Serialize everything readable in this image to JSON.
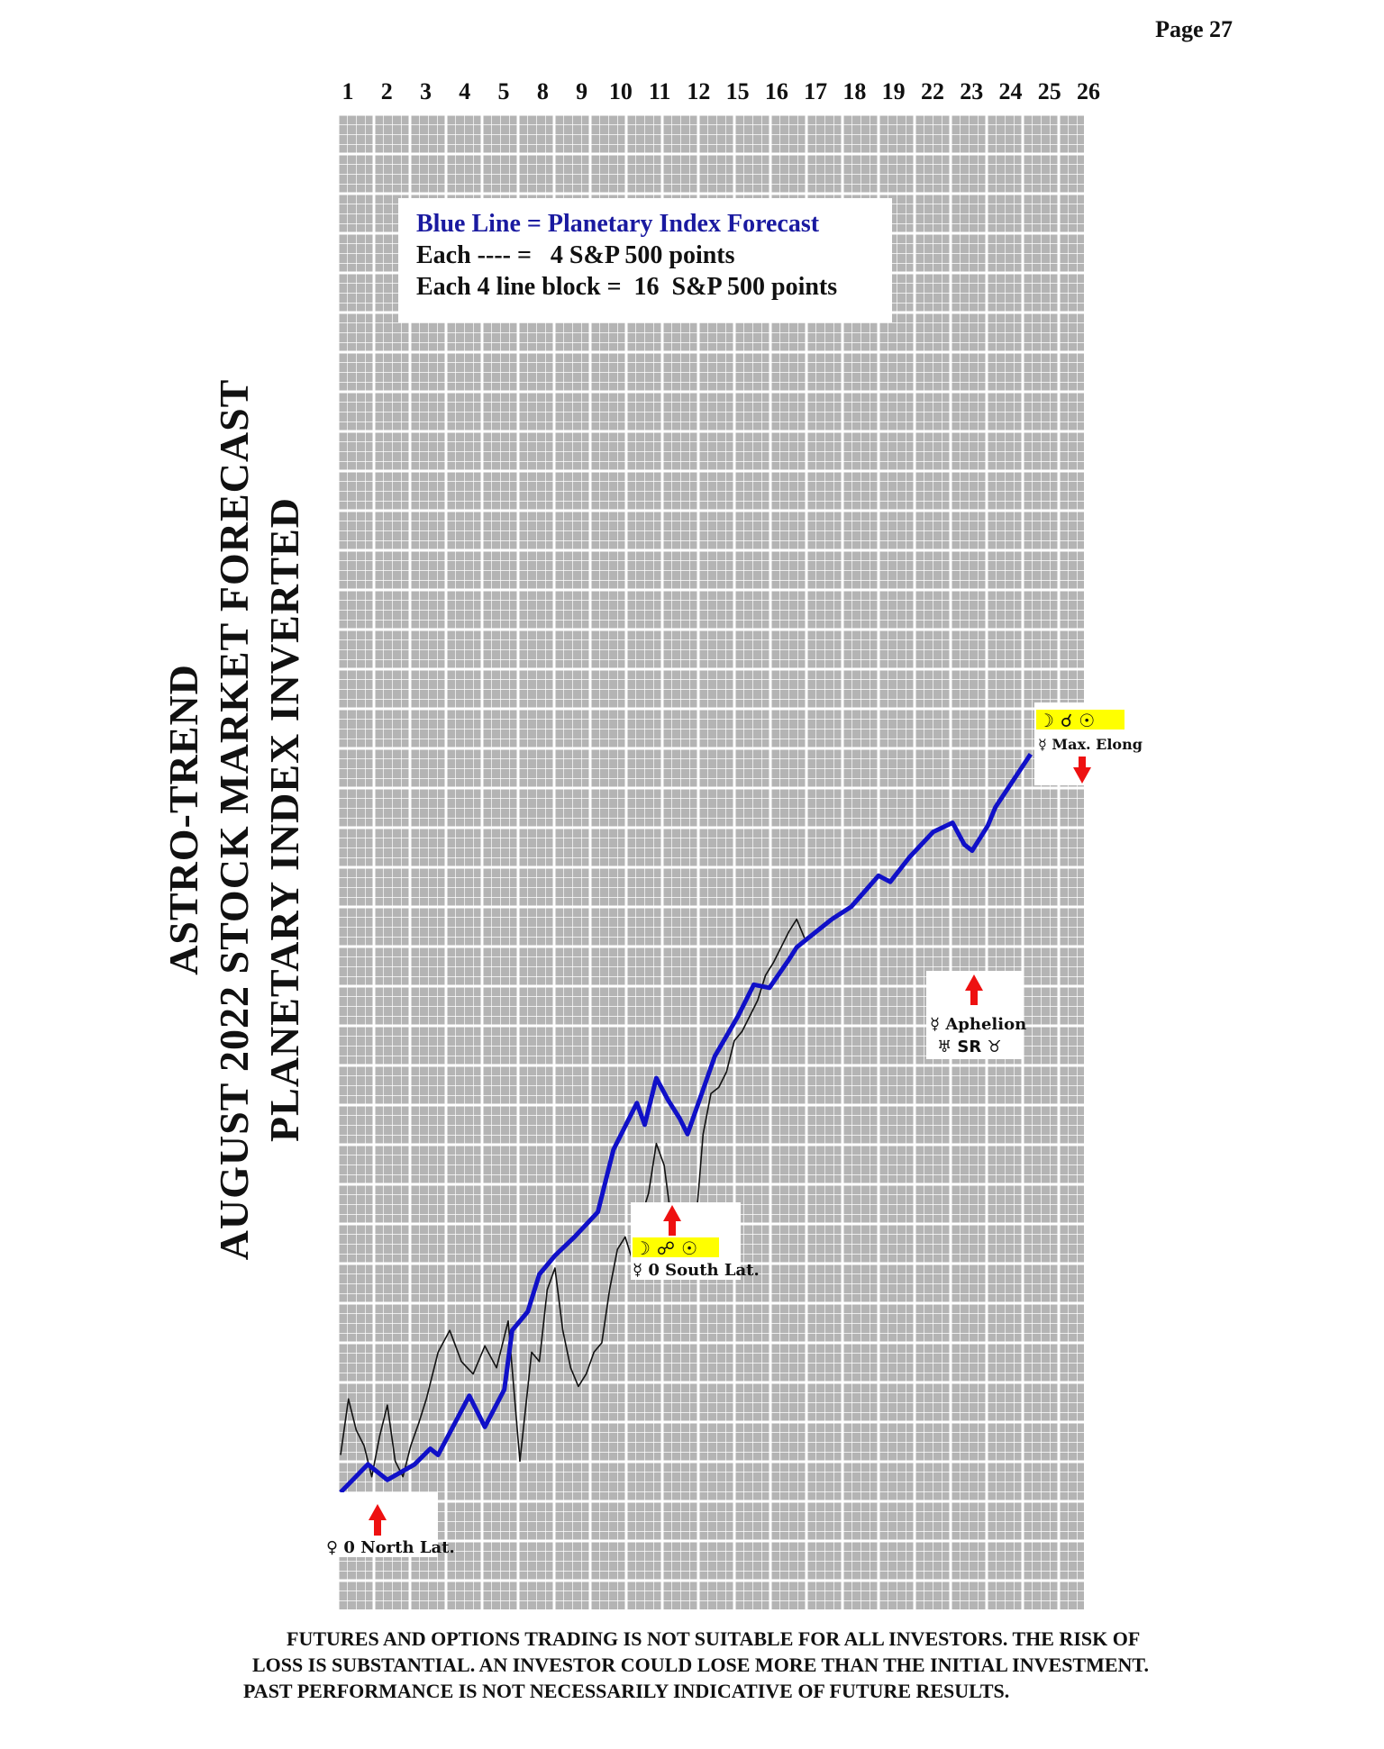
{
  "page": {
    "number_label": "Page  27"
  },
  "title_lines": [
    "ASTRO-TREND",
    "AUGUST 2022  STOCK MARKET FORECAST",
    "PLANETARY INDEX INVERTED"
  ],
  "legend": {
    "line1": "Blue Line = Planetary Index Forecast",
    "line2": "Each ---- =   4 S&P 500 points",
    "line3": "Each 4 line block =  16  S&P 500 points"
  },
  "colors": {
    "forecast_line": "#1010c8",
    "price_line": "#111111",
    "grid_minor": "#ffffff",
    "grid_background": "#b4b4b4",
    "marker_arrow": "#ee1111",
    "highlight": "#ffff00"
  },
  "annotations": [
    {
      "id": "venus-north-lat",
      "text": "♀ 0 North Lat.",
      "arrow": "up"
    },
    {
      "id": "moon-opp-sun",
      "symbols": "☽ ☍ ☉",
      "text": "☿ 0 South Lat.",
      "arrow": "up"
    },
    {
      "id": "mercury-aphelion",
      "text": "☿ Aphelion",
      "symbols2": "♅ SR ♉",
      "arrow": "up"
    },
    {
      "id": "moon-conj-sun",
      "symbols": "☽ ☌ ☉",
      "text": "☿ Max. Elong",
      "arrow": "down"
    }
  ],
  "disclaimer": {
    "line1": "FUTURES AND OPTIONS TRADING IS NOT SUITABLE FOR ALL INVESTORS.  THE RISK OF",
    "line2": "LOSS IS SUBSTANTIAL.  AN INVESTOR COULD LOSE MORE THAN THE INITIAL INVESTMENT.",
    "line3": "PAST PERFORMANCE IS NOT NECESSARILY INDICATIVE OF FUTURE RESULTS."
  },
  "chart_data": {
    "type": "line",
    "title": "",
    "xlabel": "",
    "ylabel": "",
    "y_units": "S&P 500 points (relative, 4 points per line)",
    "x_tick_labels": [
      "1",
      "2",
      "3",
      "4",
      "5",
      "8",
      "9",
      "10",
      "11",
      "12",
      "15",
      "16",
      "17",
      "18",
      "19",
      "22",
      "23",
      "24",
      "25",
      "26"
    ],
    "grid": true,
    "series": [
      {
        "name": "Blue Line = Planetary Index Forecast",
        "x": [
          0,
          0.7,
          1.2,
          1.9,
          2.3,
          2.5,
          3.3,
          3.7,
          4.2,
          4.4,
          4.8,
          5.1,
          5.5,
          6.0,
          6.6,
          7.0,
          7.6,
          7.8,
          8.1,
          8.4,
          8.7,
          8.9,
          9.6,
          10.2,
          10.6,
          11.0,
          11.5,
          11.7,
          12.6,
          13.1,
          13.8,
          14.1,
          14.6,
          15.2,
          15.7,
          16.0,
          16.2,
          16.6,
          16.8,
          17.7
        ],
        "y": [
          0,
          9,
          4,
          9,
          14,
          12,
          31,
          21,
          33,
          52,
          58,
          70,
          76,
          82,
          90,
          110,
          125,
          118,
          133,
          126,
          120,
          115,
          140,
          153,
          163,
          162,
          171,
          175,
          184,
          188,
          198,
          196,
          204,
          212,
          215,
          208,
          206,
          214,
          220,
          237
        ]
      },
      {
        "name": "",
        "x": [
          0,
          0.2,
          0.4,
          0.6,
          0.8,
          1.0,
          1.2,
          1.4,
          1.6,
          1.8,
          2.0,
          2.2,
          2.5,
          2.8,
          3.1,
          3.4,
          3.7,
          4.0,
          4.3,
          4.6,
          4.9,
          5.1,
          5.3,
          5.5,
          5.7,
          5.9,
          6.1,
          6.3,
          6.5,
          6.7,
          6.9,
          7.1,
          7.3,
          7.5,
          7.7,
          7.9,
          8.1,
          8.3,
          8.5,
          8.7,
          8.9,
          9.1,
          9.3,
          9.5,
          9.7,
          9.9,
          10.1,
          10.3,
          10.5,
          10.7,
          10.9,
          11.1,
          11.3,
          11.5,
          11.7,
          11.9
        ],
        "y": [
          12,
          30,
          20,
          15,
          5,
          18,
          28,
          10,
          5,
          15,
          22,
          30,
          45,
          52,
          42,
          38,
          47,
          40,
          55,
          10,
          45,
          42,
          65,
          72,
          52,
          40,
          34,
          38,
          45,
          48,
          65,
          78,
          82,
          74,
          88,
          96,
          112,
          105,
          86,
          92,
          88,
          84,
          115,
          128,
          130,
          135,
          145,
          148,
          153,
          158,
          166,
          170,
          175,
          180,
          184,
          178
        ]
      }
    ]
  }
}
